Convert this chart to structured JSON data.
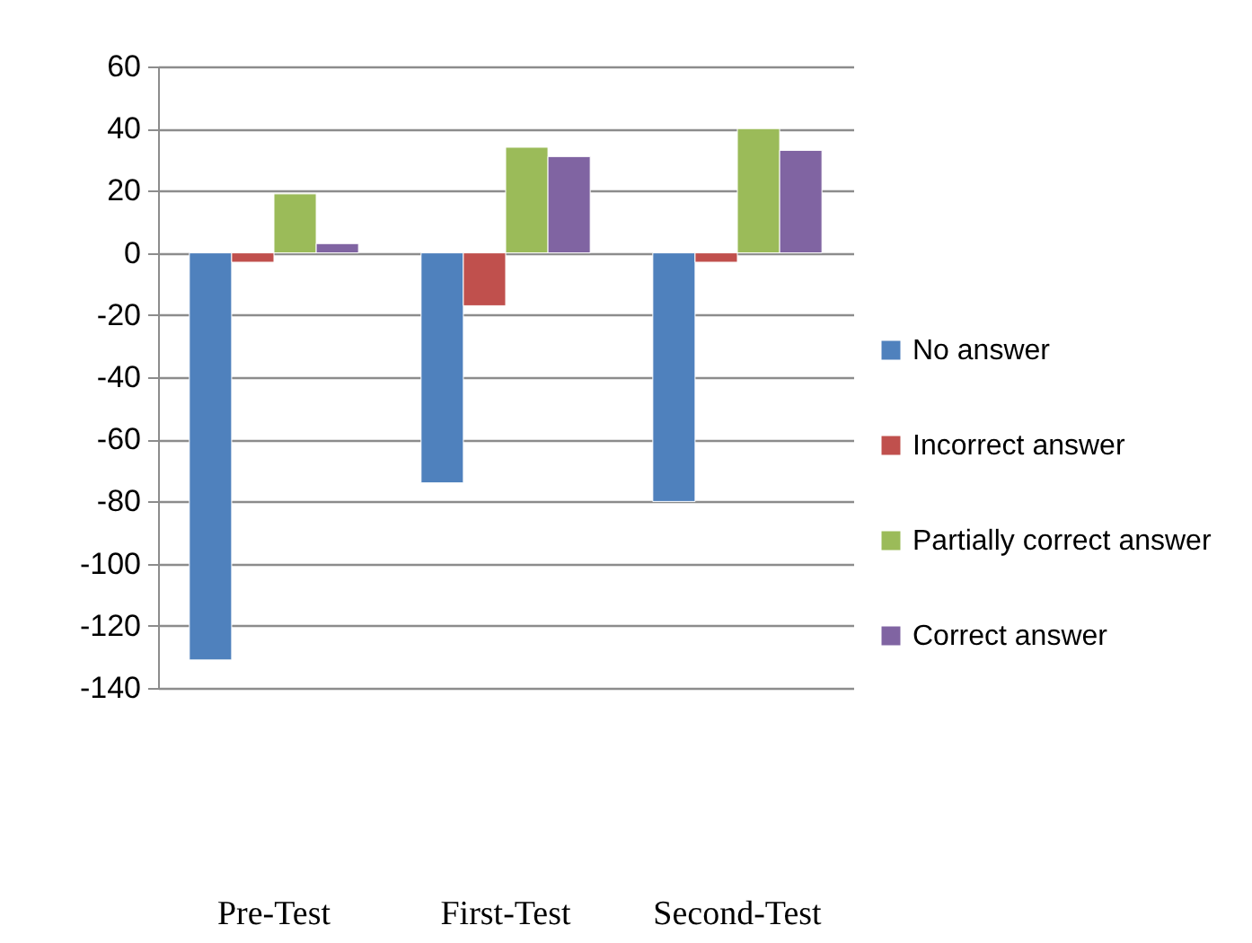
{
  "chart_data": {
    "type": "bar",
    "categories": [
      "Pre-Test",
      "First-Test",
      "Second-Test"
    ],
    "series": [
      {
        "name": "No answer",
        "color": "#4f81bd",
        "values": [
          -131,
          -74,
          -80
        ]
      },
      {
        "name": "Incorrect answer",
        "color": "#c0504d",
        "values": [
          -3,
          -17,
          -3
        ]
      },
      {
        "name": "Partially correct answer",
        "color": "#9bbb59",
        "values": [
          19,
          34,
          40
        ]
      },
      {
        "name": "Correct answer",
        "color": "#8064a2",
        "values": [
          3,
          31,
          33
        ]
      }
    ],
    "ylim": [
      -140,
      60
    ],
    "yticks": [
      -140,
      -120,
      -100,
      -80,
      -60,
      -40,
      -20,
      0,
      20,
      40,
      60
    ],
    "grid": "y",
    "legend": "right"
  }
}
